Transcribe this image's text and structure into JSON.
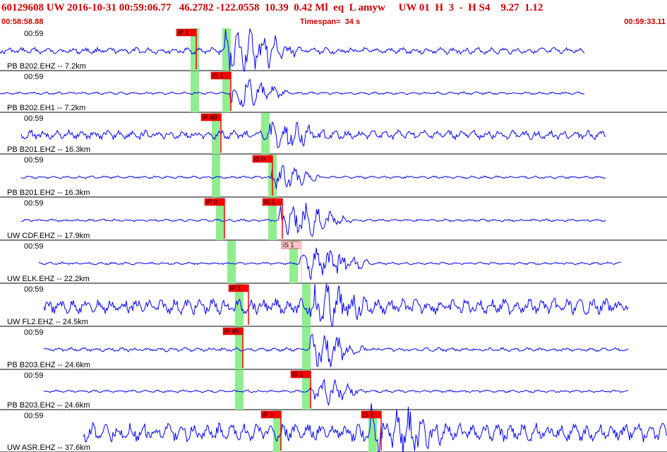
{
  "header": {
    "summary": "60129608 UW 2016-10-31 00:59:06.77   46.2782 -122.0558  10.39  0.42 Ml  eq  L amyw     UW 01  H  3  -  H S4    9.27  1.12",
    "start_time": "00:58:58.88",
    "timespan": "Timespan=  34 s",
    "end_time": "00:59:33.11"
  },
  "colors": {
    "trace": "#0000ff",
    "pick_flag": "#ff0000",
    "pick_flag_light": "#ffc8c8",
    "theoretical_window": "#90ee90",
    "header_text": "#cc0000"
  },
  "traces": [
    {
      "time_label": "00:59",
      "channel": "PB B202.EHZ -- 7.2km",
      "picks": [
        {
          "label": "iP 1",
          "time": 5.73,
          "light": false
        }
      ]
    },
    {
      "time_label": "00:59",
      "channel": "PB B202.EH1 -- 7.2km",
      "picks": [
        {
          "label": "iS 1",
          "time": 9.49,
          "light": false
        }
      ]
    },
    {
      "time_label": "00:59",
      "channel": "PB B201.EHZ -- 16.3km",
      "picks": [
        {
          "label": "iP d0",
          "time": 10.2,
          "light": false
        }
      ]
    },
    {
      "time_label": "00:59",
      "channel": "PB B201.EH2 -- 16.3km",
      "picks": [
        {
          "label": "iS 0",
          "time": 13.69,
          "light": false
        }
      ]
    },
    {
      "time_label": "00:59",
      "channel": "UW CDF.EHZ -- 17.9km",
      "picks": [
        {
          "label": "iP 0",
          "time": 10.79,
          "light": false
        },
        {
          "label": "iS 1",
          "time": 14.13,
          "light": false
        }
      ]
    },
    {
      "time_label": "00:59",
      "channel": "UW ELK.EHZ -- 22.2km",
      "picks": [
        {
          "label": "iS 1",
          "time": 15.45,
          "light": true
        }
      ]
    },
    {
      "time_label": "00:59",
      "channel": "UW FL2.EHZ -- 24.5km",
      "picks": [
        {
          "label": "iP 1",
          "time": 12.18,
          "light": false
        }
      ]
    },
    {
      "time_label": "00:59",
      "channel": "PB B203.EHZ -- 24.6km",
      "picks": [
        {
          "label": "iP d0",
          "time": 11.82,
          "light": false
        }
      ]
    },
    {
      "time_label": "00:59",
      "channel": "PB B203.EH2 -- 24.6km",
      "picks": [
        {
          "label": "iS 1",
          "time": 15.53,
          "light": false
        }
      ]
    },
    {
      "time_label": "00:59",
      "channel": "UW ASR.EHZ -- 37.6km",
      "picks": [
        {
          "label": "iP 1",
          "time": 14.05,
          "light": false
        },
        {
          "label": "iS 1",
          "time": 19.88,
          "light": false
        }
      ]
    }
  ]
}
